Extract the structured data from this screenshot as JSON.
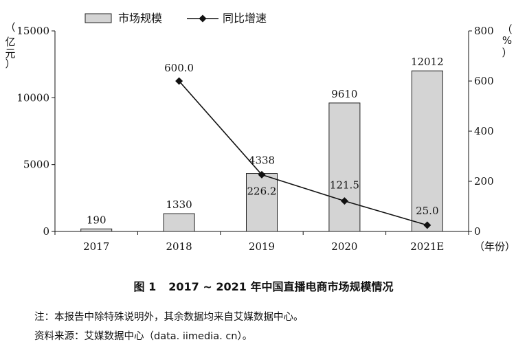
{
  "chart_data": {
    "type": "bar",
    "categories": [
      "2017",
      "2018",
      "2019",
      "2020",
      "2021E"
    ],
    "series": [
      {
        "name": "市场规模",
        "type": "bar",
        "axis": "left",
        "values": [
          190,
          1330,
          4338,
          9610,
          12012
        ],
        "labels": [
          "190",
          "1330",
          "4338",
          "9610",
          "12012"
        ]
      },
      {
        "name": "同比增速",
        "type": "line",
        "axis": "right",
        "values": [
          null,
          600.0,
          226.2,
          121.5,
          25.0
        ],
        "labels": [
          "",
          "600.0",
          "226.2",
          "121.5",
          "25.0"
        ]
      }
    ],
    "ylim_left": [
      0,
      15000
    ],
    "ylim_right": [
      0,
      800
    ],
    "yticks_left": [
      "0",
      "5000",
      "10000",
      "15000"
    ],
    "yticks_right": [
      "0",
      "200",
      "400",
      "600",
      "800"
    ],
    "ylabel_left": [
      "（",
      "亿",
      "元",
      "）"
    ],
    "ylabel_right": [
      "（",
      "%",
      "）"
    ],
    "xlabel": "（年份）",
    "legend_position": "top",
    "colors": {
      "bar_fill": "#d4d4d4",
      "bar_stroke": "#222222",
      "line": "#111111"
    }
  },
  "caption": {
    "figure": "图 1",
    "title": "2017 ~ 2021 年中国直播电商市场规模情况"
  },
  "notes": {
    "note1": "注：本报告中除特殊说明外，其余数据均来自艾媒数据中心。",
    "note2": "资料来源：艾媒数据中心（data. iimedia. cn）。"
  }
}
